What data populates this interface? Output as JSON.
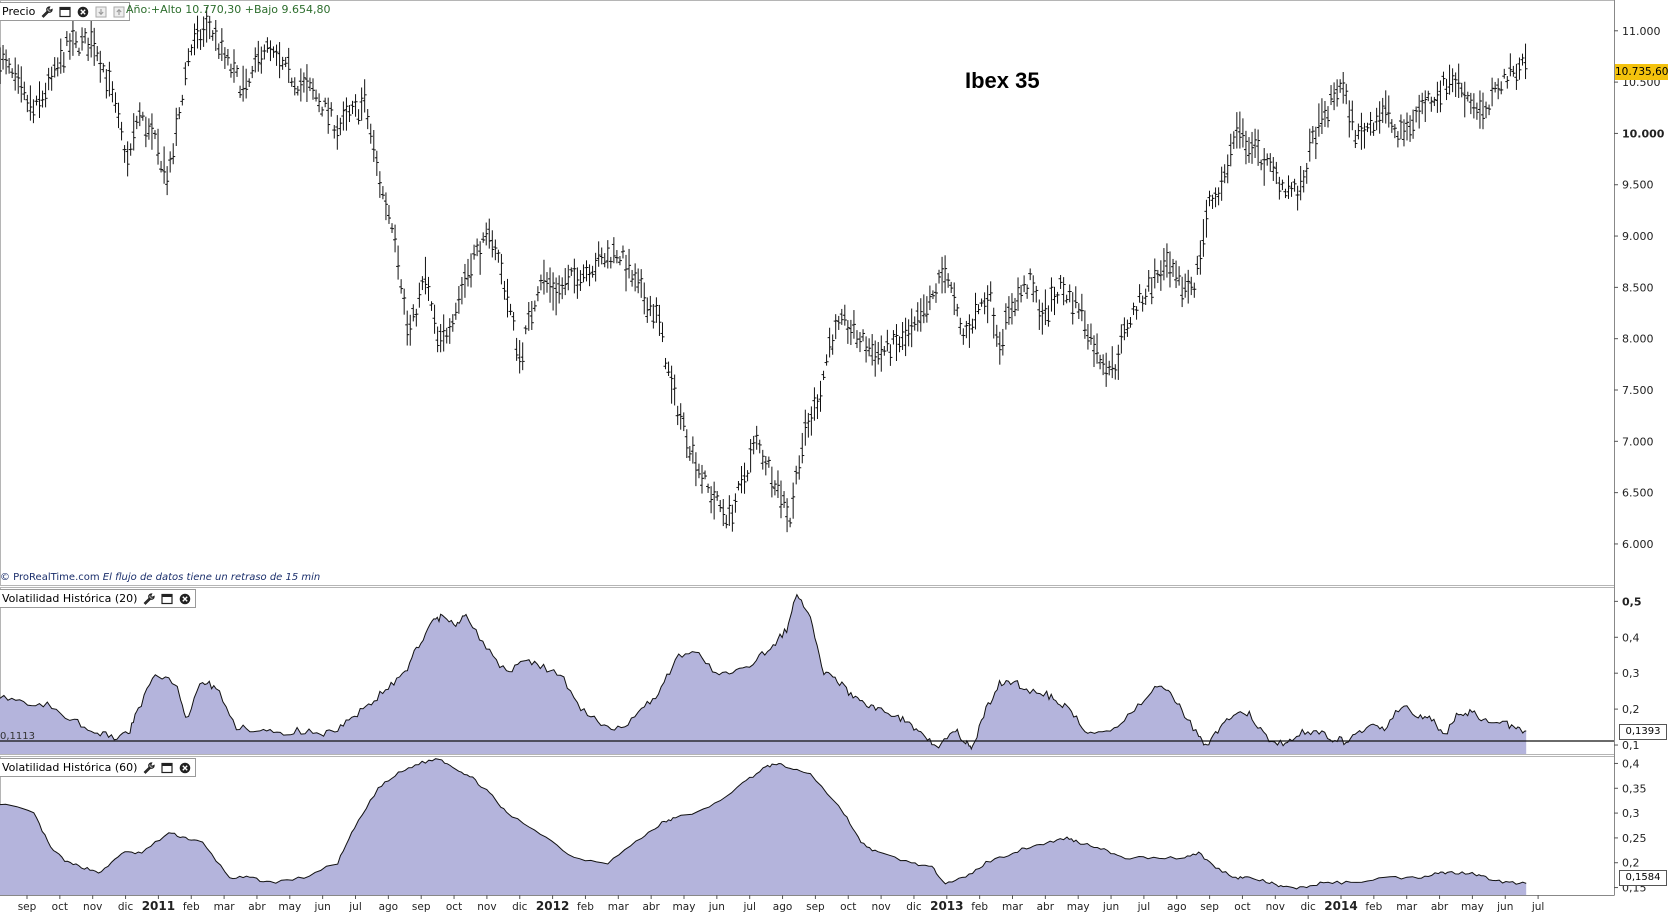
{
  "price_panel": {
    "header_label": "Precio",
    "year_range": "Año:+Alto 10.770,30 +Bajo 9.654,80",
    "title": "Ibex 35",
    "current_value": "10.735,60",
    "footer_source": "© ProRealTime.com",
    "footer_delay": "El flujo de datos tiene un retraso de 15 min",
    "icons": [
      "wrench-icon",
      "window-icon",
      "close-icon",
      "move-down-icon",
      "move-up-icon"
    ]
  },
  "vol20_panel": {
    "header_label": "Volatilidad Histórica (20)",
    "current_value": "0,1393",
    "reference_value": "0,1113",
    "icons": [
      "wrench-icon",
      "window-icon",
      "close-icon"
    ]
  },
  "vol60_panel": {
    "header_label": "Volatilidad Histórica (60)",
    "current_value": "0,1584",
    "icons": [
      "wrench-icon",
      "window-icon",
      "close-icon"
    ]
  },
  "x_axis": {
    "ticks": [
      {
        "label": "sep",
        "bold": false
      },
      {
        "label": "oct",
        "bold": false
      },
      {
        "label": "nov",
        "bold": false
      },
      {
        "label": "dic",
        "bold": false
      },
      {
        "label": "2011",
        "bold": true
      },
      {
        "label": "feb",
        "bold": false
      },
      {
        "label": "mar",
        "bold": false
      },
      {
        "label": "abr",
        "bold": false
      },
      {
        "label": "may",
        "bold": false
      },
      {
        "label": "jun",
        "bold": false
      },
      {
        "label": "jul",
        "bold": false
      },
      {
        "label": "ago",
        "bold": false
      },
      {
        "label": "sep",
        "bold": false
      },
      {
        "label": "oct",
        "bold": false
      },
      {
        "label": "nov",
        "bold": false
      },
      {
        "label": "dic",
        "bold": false
      },
      {
        "label": "2012",
        "bold": true
      },
      {
        "label": "feb",
        "bold": false
      },
      {
        "label": "mar",
        "bold": false
      },
      {
        "label": "abr",
        "bold": false
      },
      {
        "label": "may",
        "bold": false
      },
      {
        "label": "jun",
        "bold": false
      },
      {
        "label": "jul",
        "bold": false
      },
      {
        "label": "ago",
        "bold": false
      },
      {
        "label": "sep",
        "bold": false
      },
      {
        "label": "oct",
        "bold": false
      },
      {
        "label": "nov",
        "bold": false
      },
      {
        "label": "dic",
        "bold": false
      },
      {
        "label": "2013",
        "bold": true
      },
      {
        "label": "feb",
        "bold": false
      },
      {
        "label": "mar",
        "bold": false
      },
      {
        "label": "abr",
        "bold": false
      },
      {
        "label": "may",
        "bold": false
      },
      {
        "label": "jun",
        "bold": false
      },
      {
        "label": "jul",
        "bold": false
      },
      {
        "label": "ago",
        "bold": false
      },
      {
        "label": "sep",
        "bold": false
      },
      {
        "label": "oct",
        "bold": false
      },
      {
        "label": "nov",
        "bold": false
      },
      {
        "label": "dic",
        "bold": false
      },
      {
        "label": "2014",
        "bold": true
      },
      {
        "label": "feb",
        "bold": false
      },
      {
        "label": "mar",
        "bold": false
      },
      {
        "label": "abr",
        "bold": false
      },
      {
        "label": "may",
        "bold": false
      },
      {
        "label": "jun",
        "bold": false
      },
      {
        "label": "jul",
        "bold": false
      }
    ]
  },
  "colors": {
    "price_bars": "#111111",
    "area_fill": "#b4b4dc",
    "area_line": "#111111",
    "price_badge": "#f4c20d",
    "year_range_text": "#2d6e2d"
  },
  "chart_data": [
    {
      "type": "line",
      "title": "Ibex 35",
      "subtype": "ohlc-bars",
      "y_ticks": [
        "11.000",
        "10.500",
        "10.000",
        "9.500",
        "9.000",
        "8.500",
        "8.000",
        "7.500",
        "7.000",
        "6.500",
        "6.000"
      ],
      "y_tick_values": [
        11000,
        10500,
        10000,
        9500,
        9000,
        8500,
        8000,
        7500,
        7000,
        6500,
        6000
      ],
      "y_tick_bold": [
        "10.000"
      ],
      "ylim": [
        5600,
        11300
      ],
      "x_range": [
        0,
        47.8
      ],
      "x": [
        0,
        1,
        1.6,
        2,
        2.8,
        3.3,
        3.8,
        4.1,
        4.6,
        5,
        5.6,
        6.2,
        6.7,
        7.3,
        7.8,
        8.2,
        8.8,
        9.3,
        10,
        10.8,
        11.3,
        11.7,
        12.1,
        12.6,
        13,
        13.5,
        14,
        14.6,
        15,
        15.4,
        16,
        16.5,
        17,
        17.7,
        18.3,
        18.8,
        19.5,
        19.9,
        20.5,
        21,
        21.6,
        22,
        22.4,
        23,
        23.4,
        23.7,
        24,
        24.3,
        24.6,
        25,
        25.6,
        26,
        26.6,
        27,
        27.5,
        28,
        28.5,
        29,
        29.3,
        29.6,
        30,
        30.5,
        30.9,
        31.4,
        32,
        32.5,
        33,
        33.4,
        34,
        34.5,
        35,
        35.4,
        35.8,
        36.2,
        36.6,
        37,
        37.5,
        38,
        38.5,
        38.9,
        39.3,
        39.7,
        40.2,
        40.6,
        41,
        41.4,
        41.8,
        42.2,
        42.6,
        43,
        43.5,
        44,
        44.4,
        44.8,
        45.2
      ],
      "y": [
        10750,
        10200,
        10550,
        10850,
        10900,
        10400,
        9700,
        10200,
        9900,
        9550,
        10800,
        11050,
        10700,
        10400,
        10850,
        10700,
        10500,
        10400,
        10050,
        10300,
        9450,
        9050,
        8000,
        8600,
        7900,
        8300,
        8800,
        9000,
        8450,
        7800,
        8600,
        8450,
        8600,
        8750,
        8850,
        8550,
        8200,
        7500,
        6900,
        6500,
        6250,
        6600,
        7000,
        6600,
        6250,
        6900,
        7200,
        7500,
        8000,
        8150,
        7950,
        7850,
        7950,
        8050,
        8300,
        8700,
        8000,
        8300,
        8450,
        7950,
        8350,
        8550,
        8200,
        8500,
        8300,
        7850,
        7700,
        8150,
        8500,
        8700,
        8500,
        8550,
        9300,
        9500,
        10000,
        9900,
        9700,
        9500,
        9400,
        9950,
        10200,
        10500,
        9950,
        10100,
        10250,
        9950,
        10100,
        10300,
        10400,
        10550,
        10350,
        10150,
        10500,
        10600,
        10735
      ]
    },
    {
      "type": "area",
      "title": "Volatilidad Histórica (20)",
      "y_ticks": [
        "0,5",
        "0,4",
        "0,3",
        "0,2",
        "0,1"
      ],
      "y_tick_values": [
        0.5,
        0.4,
        0.3,
        0.2,
        0.1
      ],
      "y_tick_bold": [
        "0,5"
      ],
      "ylim": [
        0.075,
        0.54
      ],
      "x_range": [
        0,
        47.8
      ],
      "reference_line": 0.1113,
      "x": [
        0,
        0.7,
        1.4,
        2.2,
        2.8,
        3.3,
        3.8,
        4.1,
        4.6,
        5.2,
        5.5,
        6,
        6.4,
        7,
        7.6,
        8.2,
        8.8,
        9.5,
        10,
        10.5,
        11,
        11.5,
        12,
        12.4,
        12.8,
        13.1,
        13.5,
        13.8,
        14.4,
        15,
        15.5,
        16,
        16.6,
        17.2,
        17.8,
        18.4,
        19,
        19.5,
        20,
        20.6,
        21.2,
        21.8,
        22.4,
        22.9,
        23.3,
        23.6,
        24,
        24.4,
        24.8,
        25.2,
        25.6,
        26,
        26.6,
        27,
        27.4,
        27.8,
        28.3,
        28.6,
        28.8,
        29.2,
        29.6,
        30,
        30.4,
        31,
        31.4,
        31.8,
        32.3,
        33,
        33.6,
        34.2,
        34.6,
        35,
        35.5,
        35.8,
        36.2,
        36.6,
        37,
        37.5,
        38,
        38.4,
        38.9,
        39.4,
        39.8,
        40.2,
        40.6,
        41,
        41.5,
        42,
        42.4,
        42.8,
        43.2,
        43.6,
        44,
        44.5,
        44.9,
        45.2
      ],
      "y": [
        0.24,
        0.22,
        0.21,
        0.17,
        0.14,
        0.12,
        0.13,
        0.2,
        0.3,
        0.27,
        0.17,
        0.28,
        0.26,
        0.15,
        0.14,
        0.13,
        0.14,
        0.13,
        0.14,
        0.18,
        0.22,
        0.26,
        0.3,
        0.38,
        0.44,
        0.46,
        0.43,
        0.46,
        0.37,
        0.3,
        0.34,
        0.32,
        0.3,
        0.2,
        0.16,
        0.14,
        0.2,
        0.24,
        0.34,
        0.36,
        0.3,
        0.3,
        0.34,
        0.38,
        0.42,
        0.52,
        0.46,
        0.3,
        0.28,
        0.24,
        0.22,
        0.2,
        0.18,
        0.15,
        0.12,
        0.1,
        0.14,
        0.11,
        0.09,
        0.2,
        0.27,
        0.28,
        0.25,
        0.24,
        0.22,
        0.18,
        0.13,
        0.14,
        0.2,
        0.26,
        0.25,
        0.2,
        0.12,
        0.1,
        0.16,
        0.19,
        0.19,
        0.12,
        0.1,
        0.13,
        0.14,
        0.12,
        0.11,
        0.13,
        0.15,
        0.14,
        0.21,
        0.18,
        0.17,
        0.13,
        0.19,
        0.19,
        0.17,
        0.16,
        0.15,
        0.1393
      ]
    },
    {
      "type": "area",
      "title": "Volatilidad Histórica (60)",
      "y_ticks": [
        "0,4",
        "0,35",
        "0,3",
        "0,25",
        "0,2",
        "0,15"
      ],
      "y_tick_values": [
        0.4,
        0.35,
        0.3,
        0.25,
        0.2,
        0.15
      ],
      "y_tick_bold": [],
      "ylim": [
        0.135,
        0.415
      ],
      "x_range": [
        0,
        47.8
      ],
      "x": [
        0,
        1,
        1.5,
        2,
        2.5,
        3,
        3.6,
        4.2,
        5,
        5.5,
        6,
        6.8,
        7.4,
        8,
        9,
        10,
        10.5,
        11.2,
        11.8,
        12.4,
        13,
        13.5,
        14,
        14.5,
        15,
        16,
        17,
        18,
        19,
        19.6,
        20,
        21,
        22,
        22.6,
        23,
        23.4,
        24,
        25,
        25.5,
        26,
        27,
        27.6,
        28,
        28.6,
        29.2,
        30,
        30.4,
        31,
        31.6,
        32,
        32.6,
        33.2,
        34,
        35,
        35.5,
        36,
        36.6,
        37,
        37.6,
        38,
        38.6,
        39.2,
        40,
        41,
        42,
        42.6,
        43,
        43.6,
        44,
        44.6,
        45.2
      ],
      "y": [
        0.32,
        0.3,
        0.23,
        0.2,
        0.19,
        0.18,
        0.22,
        0.22,
        0.26,
        0.25,
        0.24,
        0.17,
        0.17,
        0.16,
        0.17,
        0.2,
        0.27,
        0.35,
        0.38,
        0.4,
        0.41,
        0.39,
        0.37,
        0.34,
        0.3,
        0.26,
        0.21,
        0.2,
        0.25,
        0.28,
        0.29,
        0.31,
        0.36,
        0.39,
        0.4,
        0.39,
        0.38,
        0.3,
        0.24,
        0.22,
        0.2,
        0.19,
        0.16,
        0.17,
        0.2,
        0.22,
        0.23,
        0.24,
        0.25,
        0.24,
        0.23,
        0.21,
        0.21,
        0.21,
        0.22,
        0.19,
        0.17,
        0.17,
        0.16,
        0.15,
        0.15,
        0.16,
        0.16,
        0.17,
        0.17,
        0.18,
        0.18,
        0.18,
        0.17,
        0.16,
        0.1584
      ]
    }
  ]
}
